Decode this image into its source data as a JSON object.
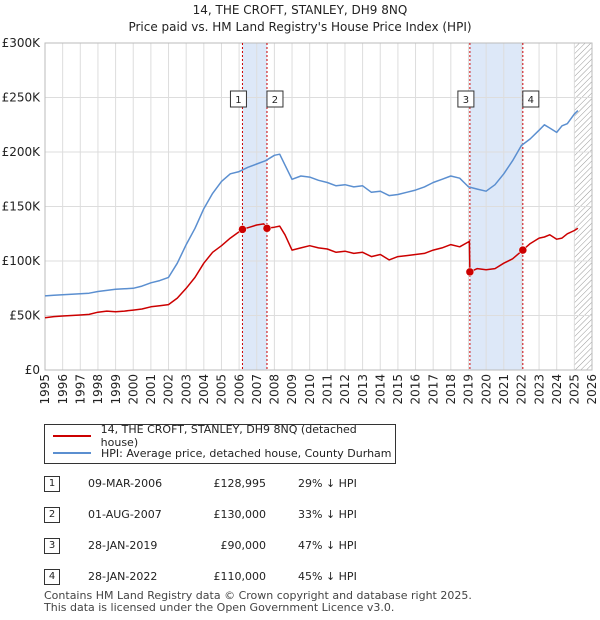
{
  "chart_data": {
    "type": "line",
    "title": "14, THE CROFT, STANLEY, DH9 8NQ",
    "subtitle": "Price paid vs. HM Land Registry's House Price Index (HPI)",
    "xlim": [
      1995,
      2026
    ],
    "ylim": [
      0,
      300000
    ],
    "x_ticks": [
      1995,
      1996,
      1997,
      1998,
      1999,
      2000,
      2001,
      2002,
      2003,
      2004,
      2005,
      2006,
      2007,
      2008,
      2009,
      2010,
      2011,
      2012,
      2013,
      2014,
      2015,
      2016,
      2017,
      2018,
      2019,
      2020,
      2021,
      2022,
      2023,
      2024,
      2025,
      2026
    ],
    "y_ticks": [
      {
        "value": 0,
        "label": "£0"
      },
      {
        "value": 50000,
        "label": "£50K"
      },
      {
        "value": 100000,
        "label": "£100K"
      },
      {
        "value": 150000,
        "label": "£150K"
      },
      {
        "value": 200000,
        "label": "£200K"
      },
      {
        "value": 250000,
        "label": "£250K"
      },
      {
        "value": 300000,
        "label": "£300K"
      }
    ],
    "grid": true,
    "series": [
      {
        "name": "14, THE CROFT, STANLEY, DH9 8NQ (detached house)",
        "color": "#cc0000",
        "x": [
          1995,
          1995.5,
          1996,
          1996.5,
          1997,
          1997.5,
          1998,
          1998.5,
          1999,
          1999.5,
          2000,
          2000.5,
          2001,
          2001.5,
          2002,
          2002.5,
          2003,
          2003.5,
          2004,
          2004.5,
          2005,
          2005.5,
          2006.19,
          2006.6,
          2007,
          2007.4,
          2007.58,
          2008,
          2008.3,
          2008.6,
          2009,
          2009.5,
          2010,
          2010.5,
          2011,
          2011.5,
          2012,
          2012.5,
          2013,
          2013.5,
          2014,
          2014.5,
          2015,
          2015.5,
          2016,
          2016.5,
          2017,
          2017.5,
          2018,
          2018.5,
          2019.05,
          2019.08,
          2019.5,
          2020,
          2020.5,
          2021,
          2021.5,
          2022.08,
          2022.5,
          2023,
          2023.3,
          2023.6,
          2024,
          2024.3,
          2024.6,
          2025,
          2025.2
        ],
        "values": [
          48000,
          49000,
          49500,
          50000,
          50500,
          51000,
          53000,
          54000,
          53500,
          54000,
          55000,
          56000,
          58000,
          59000,
          60000,
          66000,
          75000,
          85000,
          98000,
          108000,
          114000,
          121000,
          128995,
          131000,
          133000,
          134000,
          130000,
          131000,
          132000,
          124000,
          110000,
          112000,
          114000,
          112000,
          111000,
          108000,
          109000,
          107000,
          108000,
          104000,
          106000,
          101000,
          104000,
          105000,
          106000,
          107000,
          110000,
          112000,
          115000,
          113000,
          118000,
          90000,
          93000,
          92000,
          93000,
          98000,
          102000,
          110000,
          116000,
          121000,
          122000,
          124000,
          120000,
          121000,
          125000,
          128000,
          130000
        ]
      },
      {
        "name": "HPI: Average price, detached house, County Durham",
        "color": "#5b8fd0",
        "x": [
          1995,
          1995.5,
          1996,
          1996.5,
          1997,
          1997.5,
          1998,
          1998.5,
          1999,
          1999.5,
          2000,
          2000.5,
          2001,
          2001.5,
          2002,
          2002.5,
          2003,
          2003.5,
          2004,
          2004.5,
          2005,
          2005.5,
          2006,
          2006.5,
          2007,
          2007.5,
          2008,
          2008.3,
          2008.6,
          2009,
          2009.5,
          2010,
          2010.5,
          2011,
          2011.5,
          2012,
          2012.5,
          2013,
          2013.5,
          2014,
          2014.5,
          2015,
          2015.5,
          2016,
          2016.5,
          2017,
          2017.5,
          2018,
          2018.5,
          2019,
          2019.5,
          2020,
          2020.5,
          2021,
          2021.5,
          2022,
          2022.5,
          2023,
          2023.3,
          2023.6,
          2024,
          2024.3,
          2024.6,
          2025,
          2025.2
        ],
        "values": [
          68000,
          68500,
          69000,
          69500,
          70000,
          70500,
          72000,
          73000,
          74000,
          74500,
          75000,
          77000,
          80000,
          82000,
          85000,
          98000,
          115000,
          130000,
          148000,
          162000,
          173000,
          180000,
          182000,
          186000,
          189000,
          192000,
          197000,
          198000,
          188000,
          175000,
          178000,
          177000,
          174000,
          172000,
          169000,
          170000,
          168000,
          169000,
          163000,
          164000,
          160000,
          161000,
          163000,
          165000,
          168000,
          172000,
          175000,
          178000,
          176000,
          168000,
          166000,
          164000,
          170000,
          180000,
          192000,
          206000,
          212000,
          220000,
          225000,
          222000,
          218000,
          224000,
          226000,
          235000,
          238000
        ]
      }
    ],
    "transactions": [
      {
        "n": "1",
        "date": "09-MAR-2006",
        "price": "£128,995",
        "hpi": "29% ↓ HPI",
        "x": 2006.19,
        "y": 128995
      },
      {
        "n": "2",
        "date": "01-AUG-2007",
        "price": "£130,000",
        "hpi": "33% ↓ HPI",
        "x": 2007.58,
        "y": 130000
      },
      {
        "n": "3",
        "date": "28-JAN-2019",
        "price": "£90,000",
        "hpi": "47% ↓ HPI",
        "x": 2019.08,
        "y": 90000
      },
      {
        "n": "4",
        "date": "28-JAN-2022",
        "price": "£110,000",
        "hpi": "45% ↓ HPI",
        "x": 2022.08,
        "y": 110000
      }
    ],
    "shaded_spans": [
      [
        2006.19,
        2007.58
      ],
      [
        2019.08,
        2022.08
      ]
    ],
    "hatched_from": 2025.0
  },
  "legend": {
    "property_label": "14, THE CROFT, STANLEY, DH9 8NQ (detached house)",
    "hpi_label": "HPI: Average price, detached house, County Durham"
  },
  "footer": {
    "line1": "Contains HM Land Registry data © Crown copyright and database right 2025.",
    "line2": "This data is licensed under the Open Government Licence v3.0."
  },
  "colors": {
    "property": "#cc0000",
    "hpi": "#5b8fd0",
    "shade": "#dde8f8",
    "grid": "#dddddd",
    "marker_line": "#cc0000"
  }
}
